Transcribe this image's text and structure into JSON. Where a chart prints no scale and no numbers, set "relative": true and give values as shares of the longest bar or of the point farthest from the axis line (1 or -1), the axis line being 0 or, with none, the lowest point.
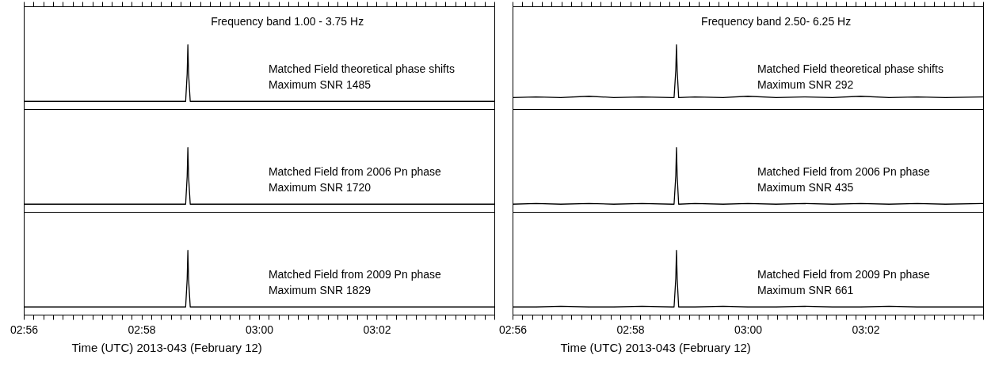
{
  "chart_data": [
    {
      "type": "line",
      "title": "Frequency band 1.00 - 3.75 Hz",
      "x": [
        2.93333,
        2.95,
        2.96667,
        2.975,
        2.9792,
        2.97963,
        2.97983,
        2.98003,
        2.9805,
        2.99,
        3.01,
        3.03,
        3.05,
        3.06667
      ],
      "values": [
        0.12,
        0.12,
        0.12,
        0.12,
        0.12,
        0.55,
        1,
        0.55,
        0.12,
        0.12,
        0.12,
        0.12,
        0.12,
        0.12
      ],
      "color": "#000000",
      "relative": true,
      "xlim": [
        2.93333,
        3.06667
      ],
      "tick_labels": false,
      "annotations": [
        "Matched Field theoretical phase shifts",
        "Maximum SNR 1485"
      ]
    },
    {
      "type": "line",
      "x": [
        2.93333,
        2.95,
        2.96667,
        2.975,
        2.9792,
        2.97963,
        2.97983,
        2.98003,
        2.9805,
        2.99,
        3.01,
        3.03,
        3.05,
        3.06667
      ],
      "values": [
        0.12,
        0.12,
        0.12,
        0.12,
        0.12,
        0.55,
        1,
        0.55,
        0.12,
        0.12,
        0.12,
        0.12,
        0.12,
        0.12
      ],
      "color": "#000000",
      "relative": true,
      "xlim": [
        2.93333,
        3.06667
      ],
      "tick_labels": false,
      "annotations": [
        "Matched Field from 2006 Pn phase",
        "Maximum SNR 1720"
      ]
    },
    {
      "type": "line",
      "xlabel": "Time (UTC) 2013-043 (February 12)",
      "x": [
        2.93333,
        2.95,
        2.96667,
        2.975,
        2.9792,
        2.97963,
        2.97983,
        2.98003,
        2.9805,
        2.99,
        3.01,
        3.03,
        3.05,
        3.06667
      ],
      "values": [
        0.12,
        0.12,
        0.12,
        0.12,
        0.12,
        0.55,
        1,
        0.55,
        0.12,
        0.12,
        0.12,
        0.12,
        0.12,
        0.12
      ],
      "color": "#000000",
      "relative": true,
      "xlim": [
        2.93333,
        3.06667
      ],
      "tick_labels": "x",
      "annotations": [
        "Matched Field from 2009 Pn phase",
        "Maximum SNR 1829"
      ],
      "xticks": [
        {
          "value": 2.93333,
          "label": "02:56"
        },
        {
          "value": 2.93611,
          "label": null
        },
        {
          "value": 2.93889,
          "label": null
        },
        {
          "value": 2.94167,
          "label": null
        },
        {
          "value": 2.94444,
          "label": null
        },
        {
          "value": 2.94722,
          "label": null
        },
        {
          "value": 2.95,
          "label": null
        },
        {
          "value": 2.95278,
          "label": null
        },
        {
          "value": 2.95556,
          "label": null
        },
        {
          "value": 2.95833,
          "label": null
        },
        {
          "value": 2.96111,
          "label": null
        },
        {
          "value": 2.96389,
          "label": null
        },
        {
          "value": 2.96667,
          "label": "02:58"
        },
        {
          "value": 2.96944,
          "label": null
        },
        {
          "value": 2.97222,
          "label": null
        },
        {
          "value": 2.975,
          "label": null
        },
        {
          "value": 2.97778,
          "label": null
        },
        {
          "value": 2.98056,
          "label": null
        },
        {
          "value": 2.98333,
          "label": null
        },
        {
          "value": 2.98611,
          "label": null
        },
        {
          "value": 2.98889,
          "label": null
        },
        {
          "value": 2.99167,
          "label": null
        },
        {
          "value": 2.99444,
          "label": null
        },
        {
          "value": 2.99722,
          "label": null
        },
        {
          "value": 3,
          "label": "03:00"
        },
        {
          "value": 3.00278,
          "label": null
        },
        {
          "value": 3.00556,
          "label": null
        },
        {
          "value": 3.00833,
          "label": null
        },
        {
          "value": 3.01111,
          "label": null
        },
        {
          "value": 3.01389,
          "label": null
        },
        {
          "value": 3.01667,
          "label": null
        },
        {
          "value": 3.01944,
          "label": null
        },
        {
          "value": 3.02222,
          "label": null
        },
        {
          "value": 3.025,
          "label": null
        },
        {
          "value": 3.02778,
          "label": null
        },
        {
          "value": 3.03056,
          "label": null
        },
        {
          "value": 3.03333,
          "label": "03:02"
        },
        {
          "value": 3.03611,
          "label": null
        },
        {
          "value": 3.03889,
          "label": null
        },
        {
          "value": 3.04167,
          "label": null
        },
        {
          "value": 3.04444,
          "label": null
        },
        {
          "value": 3.04722,
          "label": null
        },
        {
          "value": 3.05,
          "label": null
        },
        {
          "value": 3.05278,
          "label": null
        },
        {
          "value": 3.05556,
          "label": null
        },
        {
          "value": 3.05833,
          "label": null
        },
        {
          "value": 3.06111,
          "label": null
        },
        {
          "value": 3.06389,
          "label": null
        },
        {
          "value": 3.06667,
          "label": null
        }
      ]
    },
    {
      "type": "line",
      "title": "Frequency band 2.50- 6.25 Hz",
      "x": [
        2.93333,
        2.94,
        2.947,
        2.955,
        2.962,
        2.97,
        2.9785,
        2.9791,
        2.97958,
        2.97978,
        2.97998,
        2.9804,
        2.985,
        2.993,
        3.0,
        3.008,
        3.016,
        3.024,
        3.032,
        3.04,
        3.048,
        3.056,
        3.06667
      ],
      "values": [
        0.18,
        0.19,
        0.18,
        0.2,
        0.18,
        0.19,
        0.18,
        0.18,
        0.6,
        1,
        0.6,
        0.18,
        0.19,
        0.18,
        0.2,
        0.18,
        0.19,
        0.18,
        0.2,
        0.18,
        0.19,
        0.18,
        0.19
      ],
      "color": "#000000",
      "relative": true,
      "xlim": [
        2.93333,
        3.06667
      ],
      "tick_labels": false,
      "annotations": [
        "Matched Field theoretical phase shifts",
        "Maximum SNR 292"
      ]
    },
    {
      "type": "line",
      "x": [
        2.93333,
        2.94,
        2.947,
        2.955,
        2.962,
        2.97,
        2.9785,
        2.9791,
        2.97958,
        2.97978,
        2.97998,
        2.9804,
        2.985,
        2.993,
        3.0,
        3.008,
        3.016,
        3.024,
        3.032,
        3.04,
        3.048,
        3.056,
        3.06667
      ],
      "values": [
        0.12,
        0.13,
        0.12,
        0.13,
        0.12,
        0.13,
        0.12,
        0.12,
        0.56,
        1,
        0.56,
        0.12,
        0.13,
        0.12,
        0.13,
        0.12,
        0.13,
        0.12,
        0.13,
        0.12,
        0.13,
        0.12,
        0.13
      ],
      "color": "#000000",
      "relative": true,
      "xlim": [
        2.93333,
        3.06667
      ],
      "tick_labels": false,
      "annotations": [
        "Matched Field from 2006 Pn phase",
        "Maximum SNR 435"
      ]
    },
    {
      "type": "line",
      "xlabel": "Time (UTC) 2013-043 (February 12)",
      "x": [
        2.93333,
        2.94,
        2.947,
        2.955,
        2.962,
        2.97,
        2.9785,
        2.9791,
        2.97958,
        2.97978,
        2.97998,
        2.9804,
        2.985,
        2.993,
        3.0,
        3.008,
        3.016,
        3.024,
        3.032,
        3.04,
        3.048,
        3.056,
        3.06667
      ],
      "values": [
        0.12,
        0.12,
        0.13,
        0.12,
        0.12,
        0.13,
        0.12,
        0.12,
        0.56,
        1,
        0.56,
        0.12,
        0.12,
        0.13,
        0.12,
        0.12,
        0.13,
        0.12,
        0.12,
        0.13,
        0.12,
        0.12,
        0.12
      ],
      "color": "#000000",
      "relative": true,
      "xlim": [
        2.93333,
        3.06667
      ],
      "tick_labels": "x",
      "annotations": [
        "Matched Field from 2009 Pn phase",
        "Maximum SNR 661"
      ],
      "xticks": [
        {
          "value": 2.93333,
          "label": "02:56"
        },
        {
          "value": 2.93611,
          "label": null
        },
        {
          "value": 2.93889,
          "label": null
        },
        {
          "value": 2.94167,
          "label": null
        },
        {
          "value": 2.94444,
          "label": null
        },
        {
          "value": 2.94722,
          "label": null
        },
        {
          "value": 2.95,
          "label": null
        },
        {
          "value": 2.95278,
          "label": null
        },
        {
          "value": 2.95556,
          "label": null
        },
        {
          "value": 2.95833,
          "label": null
        },
        {
          "value": 2.96111,
          "label": null
        },
        {
          "value": 2.96389,
          "label": null
        },
        {
          "value": 2.96667,
          "label": "02:58"
        },
        {
          "value": 2.96944,
          "label": null
        },
        {
          "value": 2.97222,
          "label": null
        },
        {
          "value": 2.975,
          "label": null
        },
        {
          "value": 2.97778,
          "label": null
        },
        {
          "value": 2.98056,
          "label": null
        },
        {
          "value": 2.98333,
          "label": null
        },
        {
          "value": 2.98611,
          "label": null
        },
        {
          "value": 2.98889,
          "label": null
        },
        {
          "value": 2.99167,
          "label": null
        },
        {
          "value": 2.99444,
          "label": null
        },
        {
          "value": 2.99722,
          "label": null
        },
        {
          "value": 3,
          "label": "03:00"
        },
        {
          "value": 3.00278,
          "label": null
        },
        {
          "value": 3.00556,
          "label": null
        },
        {
          "value": 3.00833,
          "label": null
        },
        {
          "value": 3.01111,
          "label": null
        },
        {
          "value": 3.01389,
          "label": null
        },
        {
          "value": 3.01667,
          "label": null
        },
        {
          "value": 3.01944,
          "label": null
        },
        {
          "value": 3.02222,
          "label": null
        },
        {
          "value": 3.025,
          "label": null
        },
        {
          "value": 3.02778,
          "label": null
        },
        {
          "value": 3.03056,
          "label": null
        },
        {
          "value": 3.03333,
          "label": "03:02"
        },
        {
          "value": 3.03611,
          "label": null
        },
        {
          "value": 3.03889,
          "label": null
        },
        {
          "value": 3.04167,
          "label": null
        },
        {
          "value": 3.04444,
          "label": null
        },
        {
          "value": 3.04722,
          "label": null
        },
        {
          "value": 3.05,
          "label": null
        },
        {
          "value": 3.05278,
          "label": null
        },
        {
          "value": 3.05556,
          "label": null
        },
        {
          "value": 3.05833,
          "label": null
        },
        {
          "value": 3.06111,
          "label": null
        },
        {
          "value": 3.06389,
          "label": null
        },
        {
          "value": 3.06667,
          "label": null
        }
      ]
    }
  ]
}
